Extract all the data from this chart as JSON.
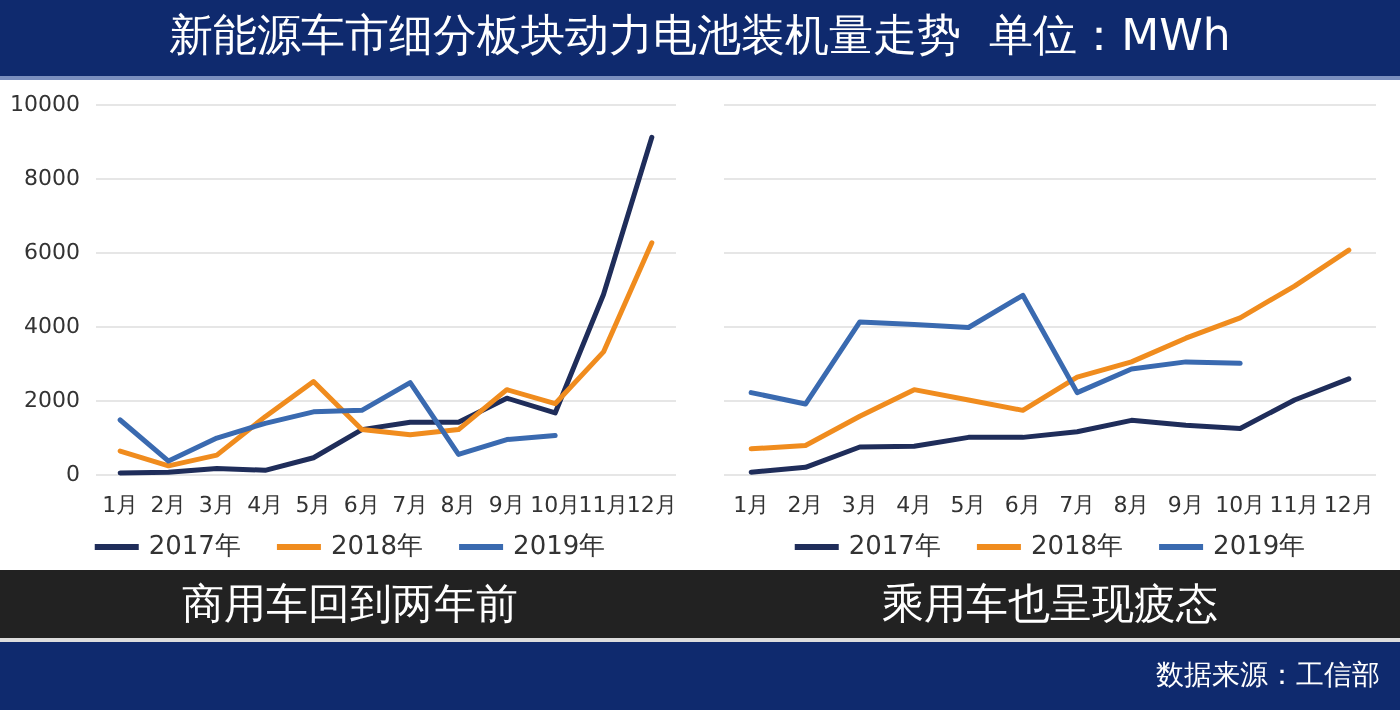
{
  "chart_data": [
    {
      "type": "line",
      "title": "新能源车市细分板块动力电池装机量走势  单位：MWh",
      "subtitle": "商用车回到两年前",
      "categories": [
        "1月",
        "2月",
        "3月",
        "4月",
        "5月",
        "6月",
        "7月",
        "8月",
        "9月",
        "10月",
        "11月",
        "12月"
      ],
      "series": [
        {
          "name": "2017年",
          "color": "#1f2d5a",
          "values": [
            30,
            50,
            150,
            100,
            440,
            1200,
            1400,
            1400,
            2050,
            1650,
            4850,
            9100
          ]
        },
        {
          "name": "2018年",
          "color": "#f08c1e",
          "values": [
            620,
            220,
            510,
            1550,
            2500,
            1200,
            1060,
            1200,
            2280,
            1900,
            3300,
            6250
          ]
        },
        {
          "name": "2019年",
          "color": "#3a6ab0",
          "values": [
            1460,
            350,
            970,
            1370,
            1680,
            1720,
            2470,
            530,
            930,
            1040,
            null,
            null
          ]
        }
      ],
      "ylim": [
        0,
        10000
      ],
      "yticks": [
        0,
        2000,
        4000,
        6000,
        8000,
        10000
      ],
      "grid": "y",
      "legend": "bottom",
      "marker": "none",
      "line_style": "solid"
    },
    {
      "type": "line",
      "subtitle": "乘用车也呈现疲态",
      "annotations": [
        "数据来源：工信部"
      ],
      "categories": [
        "1月",
        "2月",
        "3月",
        "4月",
        "5月",
        "6月",
        "7月",
        "8月",
        "9月",
        "10月",
        "11月",
        "12月"
      ],
      "series": [
        {
          "name": "2017年",
          "color": "#1f2d5a",
          "values": [
            50,
            180,
            730,
            750,
            990,
            990,
            1140,
            1450,
            1320,
            1230,
            2000,
            2570
          ]
        },
        {
          "name": "2018年",
          "color": "#f08c1e",
          "values": [
            680,
            770,
            1560,
            2280,
            2000,
            1720,
            2620,
            3030,
            3670,
            4220,
            5080,
            6050
          ]
        },
        {
          "name": "2019年",
          "color": "#3a6ab0",
          "values": [
            2200,
            1890,
            4110,
            4040,
            3960,
            4830,
            2200,
            2840,
            3030,
            2990,
            null,
            null
          ]
        }
      ],
      "ylim": [
        0,
        10000
      ],
      "yticks": [
        0,
        2000,
        4000,
        6000,
        8000,
        10000
      ],
      "grid": "y",
      "legend": "bottom",
      "marker": "none",
      "line_style": "solid",
      "tick_labels": "x"
    }
  ]
}
